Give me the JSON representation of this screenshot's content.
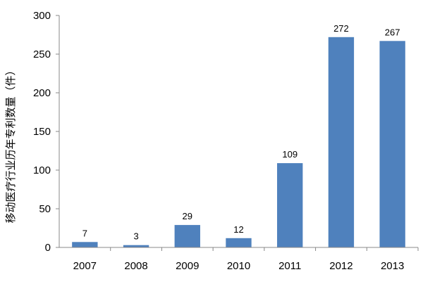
{
  "chart_data": {
    "type": "bar",
    "categories": [
      "2007",
      "2008",
      "2009",
      "2010",
      "2011",
      "2012",
      "2013"
    ],
    "values": [
      7,
      3,
      29,
      12,
      109,
      272,
      267
    ],
    "data_labels": [
      "7",
      "3",
      "29",
      "12",
      "109",
      "272",
      "267"
    ],
    "title": "",
    "xlabel": "",
    "ylabel": "移动医疗行业历年专利数量（件）",
    "ylim": [
      0,
      300
    ],
    "yticks": [
      0,
      50,
      100,
      150,
      200,
      250,
      300
    ],
    "ytick_labels": [
      "0",
      "50",
      "100",
      "150",
      "200",
      "250",
      "300"
    ],
    "grid": false,
    "legend": "none",
    "bar_color": "#4f81bd",
    "axis_color": "#888888"
  }
}
